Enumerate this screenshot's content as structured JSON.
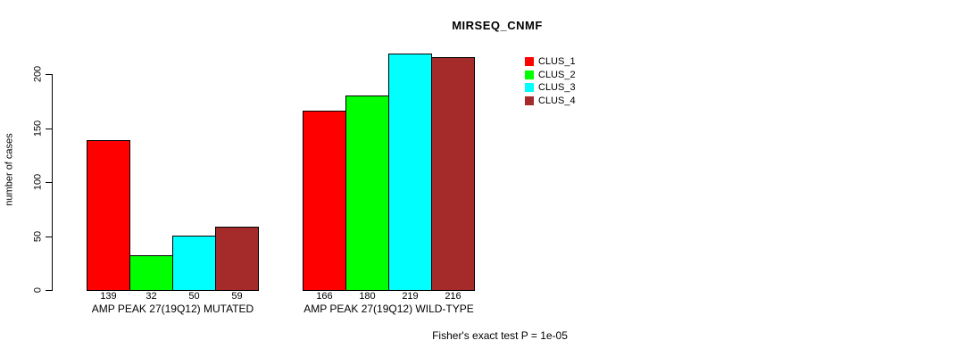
{
  "title": "MIRSEQ_CNMF",
  "footer": "Fisher's exact test P = 1e-05",
  "y_axis": {
    "label": "number of cases",
    "ticks": [
      0,
      50,
      100,
      150,
      200
    ]
  },
  "legend": {
    "items": [
      {
        "label": "CLUS_1",
        "color": "#FF0000"
      },
      {
        "label": "CLUS_2",
        "color": "#00FF00"
      },
      {
        "label": "CLUS_3",
        "color": "#00FFFF"
      },
      {
        "label": "CLUS_4",
        "color": "#A52A2A"
      }
    ]
  },
  "chart_data": {
    "type": "bar",
    "title": "MIRSEQ_CNMF",
    "xlabel": "",
    "ylabel": "number of cases",
    "ylim": [
      0,
      220
    ],
    "yticks": [
      0,
      50,
      100,
      150,
      200
    ],
    "grid": false,
    "legend_position": "top-right",
    "show_bar_values": true,
    "categories": [
      "AMP PEAK 27(19Q12) MUTATED",
      "AMP PEAK 27(19Q12) WILD-TYPE"
    ],
    "series": [
      {
        "name": "CLUS_1",
        "color": "#FF0000",
        "values": [
          139,
          166
        ]
      },
      {
        "name": "CLUS_2",
        "color": "#00FF00",
        "values": [
          32,
          180
        ]
      },
      {
        "name": "CLUS_3",
        "color": "#00FFFF",
        "values": [
          50,
          219
        ]
      },
      {
        "name": "CLUS_4",
        "color": "#A52A2A",
        "values": [
          59,
          216
        ]
      }
    ],
    "annotation": "Fisher's exact test P = 1e-05"
  }
}
